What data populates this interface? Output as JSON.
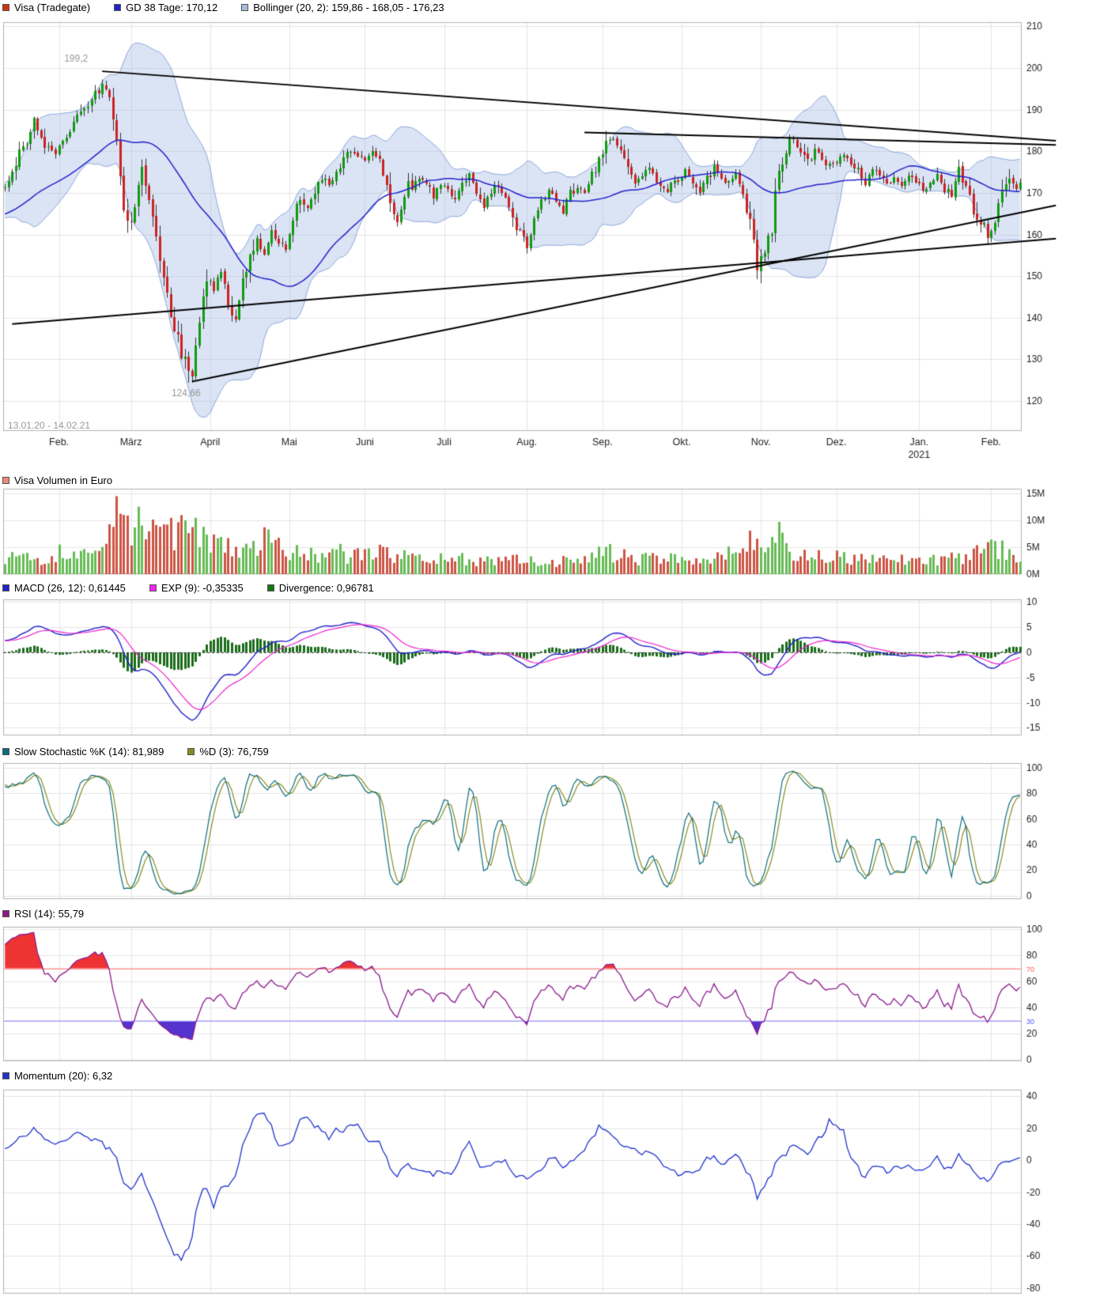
{
  "chart_data": [
    {
      "type": "candlestick",
      "panel": "price",
      "legend": [
        {
          "label": "Visa (Tradegate)",
          "color": "#cc3311"
        },
        {
          "label": "GD 38 Tage: 170,12",
          "color": "#2222cc"
        },
        {
          "label": "Bollinger (20, 2): 159,86 - 168,05 - 176,23",
          "color": "#a8bcdf"
        }
      ],
      "date_range_label": "13.01.20 - 14.02.21",
      "ylim": [
        112.8,
        211
      ],
      "y_ticks": [
        120,
        130,
        140,
        150,
        160,
        170,
        180,
        190,
        200,
        210
      ],
      "x_ticks": [
        {
          "day": 15,
          "label": "Feb."
        },
        {
          "day": 35,
          "label": "März"
        },
        {
          "day": 57,
          "label": "April"
        },
        {
          "day": 79,
          "label": "Mai"
        },
        {
          "day": 100,
          "label": "Juni"
        },
        {
          "day": 122,
          "label": "Juli"
        },
        {
          "day": 145,
          "label": "Aug."
        },
        {
          "day": 166,
          "label": "Sep."
        },
        {
          "day": 188,
          "label": "Okt."
        },
        {
          "day": 210,
          "label": "Nov."
        },
        {
          "day": 231,
          "label": "Dez."
        },
        {
          "day": 254,
          "label": "Jan.",
          "sublabel": "2021"
        },
        {
          "day": 274,
          "label": "Feb."
        }
      ],
      "annotations": [
        {
          "text": "199,2",
          "day": 27,
          "price": 199.2
        },
        {
          "text": "124,66",
          "day": 52,
          "price": 124.66
        }
      ],
      "trendlines": [
        [
          27,
          199.2,
          292,
          182.5
        ],
        [
          161,
          184.5,
          292,
          181.5
        ],
        [
          2,
          138.5,
          292,
          159.0
        ],
        [
          52,
          124.66,
          292,
          167.0
        ]
      ],
      "indicators": {
        "ma_period": 38,
        "bollinger_period": 20,
        "bollinger_sigma": 2
      },
      "close_waypoints": [
        [
          0,
          171.5
        ],
        [
          2,
          175
        ],
        [
          5,
          181
        ],
        [
          8,
          186.5
        ],
        [
          10,
          183.5
        ],
        [
          12,
          180
        ],
        [
          14,
          179.5
        ],
        [
          17,
          184
        ],
        [
          20,
          188
        ],
        [
          23,
          190.5
        ],
        [
          26,
          195
        ],
        [
          27,
          197.5
        ],
        [
          29,
          192
        ],
        [
          31,
          181
        ],
        [
          33,
          167
        ],
        [
          35,
          162
        ],
        [
          37,
          171
        ],
        [
          38,
          176
        ],
        [
          40,
          169
        ],
        [
          42,
          160
        ],
        [
          44,
          150
        ],
        [
          46,
          141
        ],
        [
          48,
          136
        ],
        [
          50,
          128.5
        ],
        [
          52,
          125.5
        ],
        [
          53,
          133
        ],
        [
          54,
          140
        ],
        [
          56,
          150
        ],
        [
          58,
          146
        ],
        [
          60,
          152
        ],
        [
          62,
          143.5
        ],
        [
          64,
          141
        ],
        [
          66,
          148
        ],
        [
          68,
          154.5
        ],
        [
          70,
          158
        ],
        [
          72,
          155.5
        ],
        [
          74,
          160.5
        ],
        [
          76,
          158
        ],
        [
          78,
          156.5
        ],
        [
          80,
          163
        ],
        [
          82,
          167.5
        ],
        [
          84,
          166
        ],
        [
          86,
          170
        ],
        [
          88,
          174
        ],
        [
          90,
          172
        ],
        [
          92,
          175
        ],
        [
          94,
          177.5
        ],
        [
          96,
          180
        ],
        [
          98,
          178.5
        ],
        [
          100,
          178
        ],
        [
          102,
          180
        ],
        [
          104,
          177.5
        ],
        [
          106,
          171.5
        ],
        [
          109,
          163.5
        ],
        [
          111,
          170
        ],
        [
          113,
          172
        ],
        [
          115,
          174
        ],
        [
          117,
          171.5
        ],
        [
          119,
          169.5
        ],
        [
          121,
          172.5
        ],
        [
          123,
          171
        ],
        [
          125,
          168
        ],
        [
          127,
          172
        ],
        [
          129,
          174
        ],
        [
          131,
          170
        ],
        [
          133,
          167
        ],
        [
          135,
          170
        ],
        [
          137,
          172
        ],
        [
          139,
          168
        ],
        [
          141,
          163.5
        ],
        [
          143,
          160
        ],
        [
          145,
          157.5
        ],
        [
          147,
          163
        ],
        [
          149,
          167
        ],
        [
          151,
          170
        ],
        [
          153,
          168
        ],
        [
          155,
          166
        ],
        [
          157,
          170
        ],
        [
          159,
          172
        ],
        [
          161,
          170
        ],
        [
          163,
          174
        ],
        [
          165,
          178
        ],
        [
          167,
          183
        ],
        [
          169,
          184
        ],
        [
          171,
          179.5
        ],
        [
          173,
          175
        ],
        [
          175,
          172
        ],
        [
          177,
          174
        ],
        [
          179,
          176
        ],
        [
          181,
          173
        ],
        [
          183,
          170
        ],
        [
          185,
          172
        ],
        [
          187,
          173
        ],
        [
          189,
          175
        ],
        [
          191,
          172
        ],
        [
          193,
          170
        ],
        [
          195,
          174
        ],
        [
          197,
          176
        ],
        [
          199,
          174
        ],
        [
          201,
          172
        ],
        [
          203,
          174.5
        ],
        [
          205,
          170
        ],
        [
          207,
          163
        ],
        [
          209,
          152.5
        ],
        [
          211,
          155
        ],
        [
          213,
          162
        ],
        [
          215,
          177
        ],
        [
          217,
          181
        ],
        [
          219,
          183.5
        ],
        [
          221,
          179
        ],
        [
          223,
          177
        ],
        [
          225,
          180
        ],
        [
          227,
          178
        ],
        [
          229,
          176
        ],
        [
          231,
          177
        ],
        [
          233,
          179.5
        ],
        [
          235,
          177
        ],
        [
          237,
          175
        ],
        [
          239,
          173
        ],
        [
          241,
          176
        ],
        [
          243,
          174
        ],
        [
          245,
          172
        ],
        [
          247,
          173.5
        ],
        [
          249,
          171
        ],
        [
          251,
          174
        ],
        [
          253,
          173
        ],
        [
          255,
          170
        ],
        [
          257,
          172
        ],
        [
          259,
          174.5
        ],
        [
          261,
          171
        ],
        [
          263,
          169
        ],
        [
          265,
          175.5
        ],
        [
          267,
          172
        ],
        [
          269,
          166
        ],
        [
          271,
          163
        ],
        [
          273,
          160
        ],
        [
          275,
          162.5
        ],
        [
          277,
          170
        ],
        [
          279,
          173
        ],
        [
          281,
          171
        ],
        [
          282,
          172.5
        ]
      ],
      "colors": {
        "up": "#0f9b0f",
        "down": "#cc2222",
        "wick": "#333333",
        "ma": "#2222cc",
        "boll_fill": "rgba(170,190,228,0.42)",
        "boll_edge": "rgba(130,158,215,0.9)",
        "trend": "#000000",
        "annotation": "#999999"
      }
    },
    {
      "type": "bar",
      "panel": "volume",
      "legend": [
        {
          "label": "Visa Volumen in Euro",
          "color": "#ee8877"
        }
      ],
      "ylim": [
        0,
        15.9
      ],
      "y_ticks": [
        {
          "v": 0,
          "label": "0M"
        },
        {
          "v": 5,
          "label": "5M"
        },
        {
          "v": 10,
          "label": "10M"
        },
        {
          "v": 15,
          "label": "15M"
        }
      ],
      "volume_waypoints_millions": [
        [
          0,
          2.6
        ],
        [
          4,
          3.4
        ],
        [
          8,
          3.0
        ],
        [
          12,
          2.6
        ],
        [
          15,
          4.2
        ],
        [
          18,
          3.2
        ],
        [
          21,
          3.6
        ],
        [
          24,
          3.0
        ],
        [
          27,
          4.5
        ],
        [
          29,
          6.5
        ],
        [
          31,
          11.5
        ],
        [
          33,
          12.5
        ],
        [
          35,
          8.0
        ],
        [
          37,
          9.5
        ],
        [
          39,
          7.0
        ],
        [
          41,
          8.5
        ],
        [
          43,
          7.0
        ],
        [
          45,
          9.0
        ],
        [
          47,
          7.5
        ],
        [
          49,
          8.5
        ],
        [
          52,
          9.5
        ],
        [
          54,
          7.0
        ],
        [
          56,
          6.0
        ],
        [
          58,
          7.5
        ],
        [
          60,
          5.0
        ],
        [
          62,
          6.5
        ],
        [
          64,
          5.5
        ],
        [
          66,
          4.5
        ],
        [
          68,
          5.5
        ],
        [
          70,
          4.5
        ],
        [
          72,
          7.8
        ],
        [
          74,
          4.5
        ],
        [
          76,
          5.5
        ],
        [
          78,
          4.0
        ],
        [
          80,
          4.5
        ],
        [
          83,
          3.6
        ],
        [
          86,
          4.2
        ],
        [
          89,
          3.2
        ],
        [
          92,
          4.6
        ],
        [
          95,
          3.0
        ],
        [
          98,
          4.2
        ],
        [
          101,
          3.4
        ],
        [
          104,
          4.4
        ],
        [
          107,
          3.8
        ],
        [
          110,
          3.4
        ],
        [
          113,
          2.8
        ],
        [
          116,
          3.4
        ],
        [
          119,
          2.6
        ],
        [
          122,
          3.0
        ],
        [
          125,
          3.6
        ],
        [
          128,
          2.8
        ],
        [
          131,
          2.4
        ],
        [
          134,
          2.8
        ],
        [
          137,
          2.3
        ],
        [
          140,
          2.6
        ],
        [
          143,
          3.2
        ],
        [
          146,
          2.4
        ],
        [
          149,
          2.8
        ],
        [
          152,
          2.2
        ],
        [
          155,
          2.6
        ],
        [
          158,
          2.2
        ],
        [
          161,
          2.8
        ],
        [
          164,
          3.2
        ],
        [
          167,
          4.2
        ],
        [
          170,
          3.4
        ],
        [
          173,
          3.8
        ],
        [
          176,
          2.8
        ],
        [
          179,
          3.2
        ],
        [
          182,
          2.6
        ],
        [
          185,
          2.9
        ],
        [
          188,
          2.5
        ],
        [
          191,
          3.1
        ],
        [
          194,
          2.6
        ],
        [
          197,
          3.3
        ],
        [
          200,
          4.6
        ],
        [
          202,
          3.6
        ],
        [
          204,
          4.2
        ],
        [
          206,
          5.2
        ],
        [
          208,
          6.8
        ],
        [
          210,
          5.0
        ],
        [
          212,
          4.2
        ],
        [
          214,
          6.0
        ],
        [
          215,
          8.6
        ],
        [
          217,
          4.6
        ],
        [
          219,
          3.8
        ],
        [
          222,
          3.2
        ],
        [
          225,
          3.6
        ],
        [
          228,
          2.8
        ],
        [
          231,
          3.2
        ],
        [
          234,
          2.7
        ],
        [
          237,
          3.1
        ],
        [
          240,
          2.5
        ],
        [
          243,
          2.9
        ],
        [
          246,
          2.4
        ],
        [
          249,
          2.7
        ],
        [
          252,
          2.3
        ],
        [
          255,
          3.1
        ],
        [
          258,
          2.6
        ],
        [
          261,
          3.3
        ],
        [
          264,
          2.8
        ],
        [
          267,
          3.6
        ],
        [
          270,
          4.2
        ],
        [
          273,
          4.6
        ],
        [
          276,
          5.0
        ],
        [
          279,
          4.4
        ],
        [
          282,
          3.0
        ]
      ],
      "colors": {
        "up": "#66bb55",
        "down": "#cc5544"
      }
    },
    {
      "type": "line",
      "panel": "macd",
      "legend": [
        {
          "label": "MACD (26, 12): 0,61445",
          "color": "#2222cc"
        },
        {
          "label": "EXP (9): -0,35335",
          "color": "#ee22ee"
        },
        {
          "label": "Divergence: 0,96781",
          "color": "#117711"
        }
      ],
      "params": {
        "fast": 12,
        "slow": 26,
        "signal": 9
      },
      "ylim": [
        -16.5,
        10.5
      ],
      "y_ticks": [
        10,
        5,
        0,
        -5,
        -10,
        -15
      ],
      "colors": {
        "macd": "#2222cc",
        "signal": "#ee22cc",
        "histogram": "#1a6b1a",
        "zero": "#444444"
      }
    },
    {
      "type": "line",
      "panel": "stochastic",
      "legend": [
        {
          "label": "Slow Stochastic %K (14): 81,989",
          "color": "#0d6d7a"
        },
        {
          "label": "%D (3): 76,759",
          "color": "#8a8a22"
        }
      ],
      "params": {
        "k": 14,
        "d": 3
      },
      "ylim": [
        -2.5,
        103.5
      ],
      "y_ticks": [
        100,
        80,
        60,
        40,
        20,
        0
      ],
      "colors": {
        "k": "#0d6d7a",
        "d": "#8a8a22"
      }
    },
    {
      "type": "line",
      "panel": "rsi",
      "legend": [
        {
          "label": "RSI (14): 55,79",
          "color": "#8b1a8b"
        }
      ],
      "params": {
        "period": 14,
        "overbought": 70,
        "oversold": 30
      },
      "ylim": [
        -1,
        102
      ],
      "y_ticks": [
        100,
        80,
        60,
        40,
        20,
        0
      ],
      "level_ticks": [
        {
          "v": 70,
          "label": "70",
          "color": "#ff5555"
        },
        {
          "v": 30,
          "label": "30",
          "color": "#5555ff"
        }
      ],
      "colors": {
        "line": "#8b1a8b",
        "overbought_line": "#ff8888",
        "oversold_line": "#9999ff",
        "overbought_fill": "#ee3333",
        "oversold_fill": "#5533cc"
      }
    },
    {
      "type": "line",
      "panel": "momentum",
      "legend": [
        {
          "label": "Momentum (20): 6,32",
          "color": "#2233cc"
        }
      ],
      "params": {
        "period": 20
      },
      "ylim": [
        -83.5,
        44
      ],
      "y_ticks": [
        40,
        20,
        0,
        -20,
        -40,
        -60,
        -80
      ],
      "colors": {
        "line": "#2233cc"
      }
    }
  ]
}
